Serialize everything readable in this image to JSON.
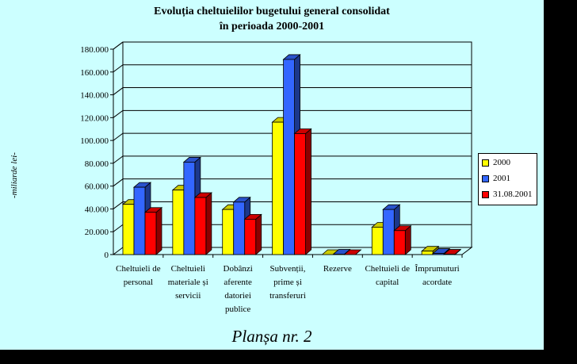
{
  "chart_data": {
    "type": "bar",
    "title_lines": [
      "Evoluția cheltuielilor bugetului general consolidat",
      "în perioada 2000-2001"
    ],
    "ylabel": "-miliarde lei-",
    "ylim": [
      0,
      180000
    ],
    "ytick_values": [
      0,
      20000,
      40000,
      60000,
      80000,
      100000,
      120000,
      140000,
      160000,
      180000
    ],
    "ytick_labels": [
      "0",
      "20.000",
      "40.000",
      "60.000",
      "80.000",
      "100.000",
      "120.000",
      "140.000",
      "160.000",
      "180.000"
    ],
    "categories": [
      [
        "Cheltuieli de",
        "personal"
      ],
      [
        "Cheltuieli",
        "materiale și",
        "servicii"
      ],
      [
        "Dobânzi",
        "aferente",
        "datoriei",
        "publice"
      ],
      [
        "Subvenții,",
        "prime și",
        "transferuri"
      ],
      [
        "Rezerve"
      ],
      [
        "Cheltuieli de",
        "capital"
      ],
      [
        "Împrumuturi",
        "acordate"
      ]
    ],
    "series": [
      {
        "name": "2000",
        "color": "#ffff00",
        "values": [
          44000,
          56500,
          39500,
          116000,
          0,
          24000,
          3000
        ]
      },
      {
        "name": "2001",
        "color": "#3366ff",
        "values": [
          59000,
          81000,
          46000,
          171000,
          300,
          39500,
          1000
        ]
      },
      {
        "name": "31.08.2001",
        "color": "#ff0000",
        "values": [
          37000,
          50000,
          31000,
          106000,
          0,
          21000,
          300
        ]
      }
    ],
    "legend_position": "right",
    "grid": true,
    "footer": "Planșa nr. 2"
  }
}
